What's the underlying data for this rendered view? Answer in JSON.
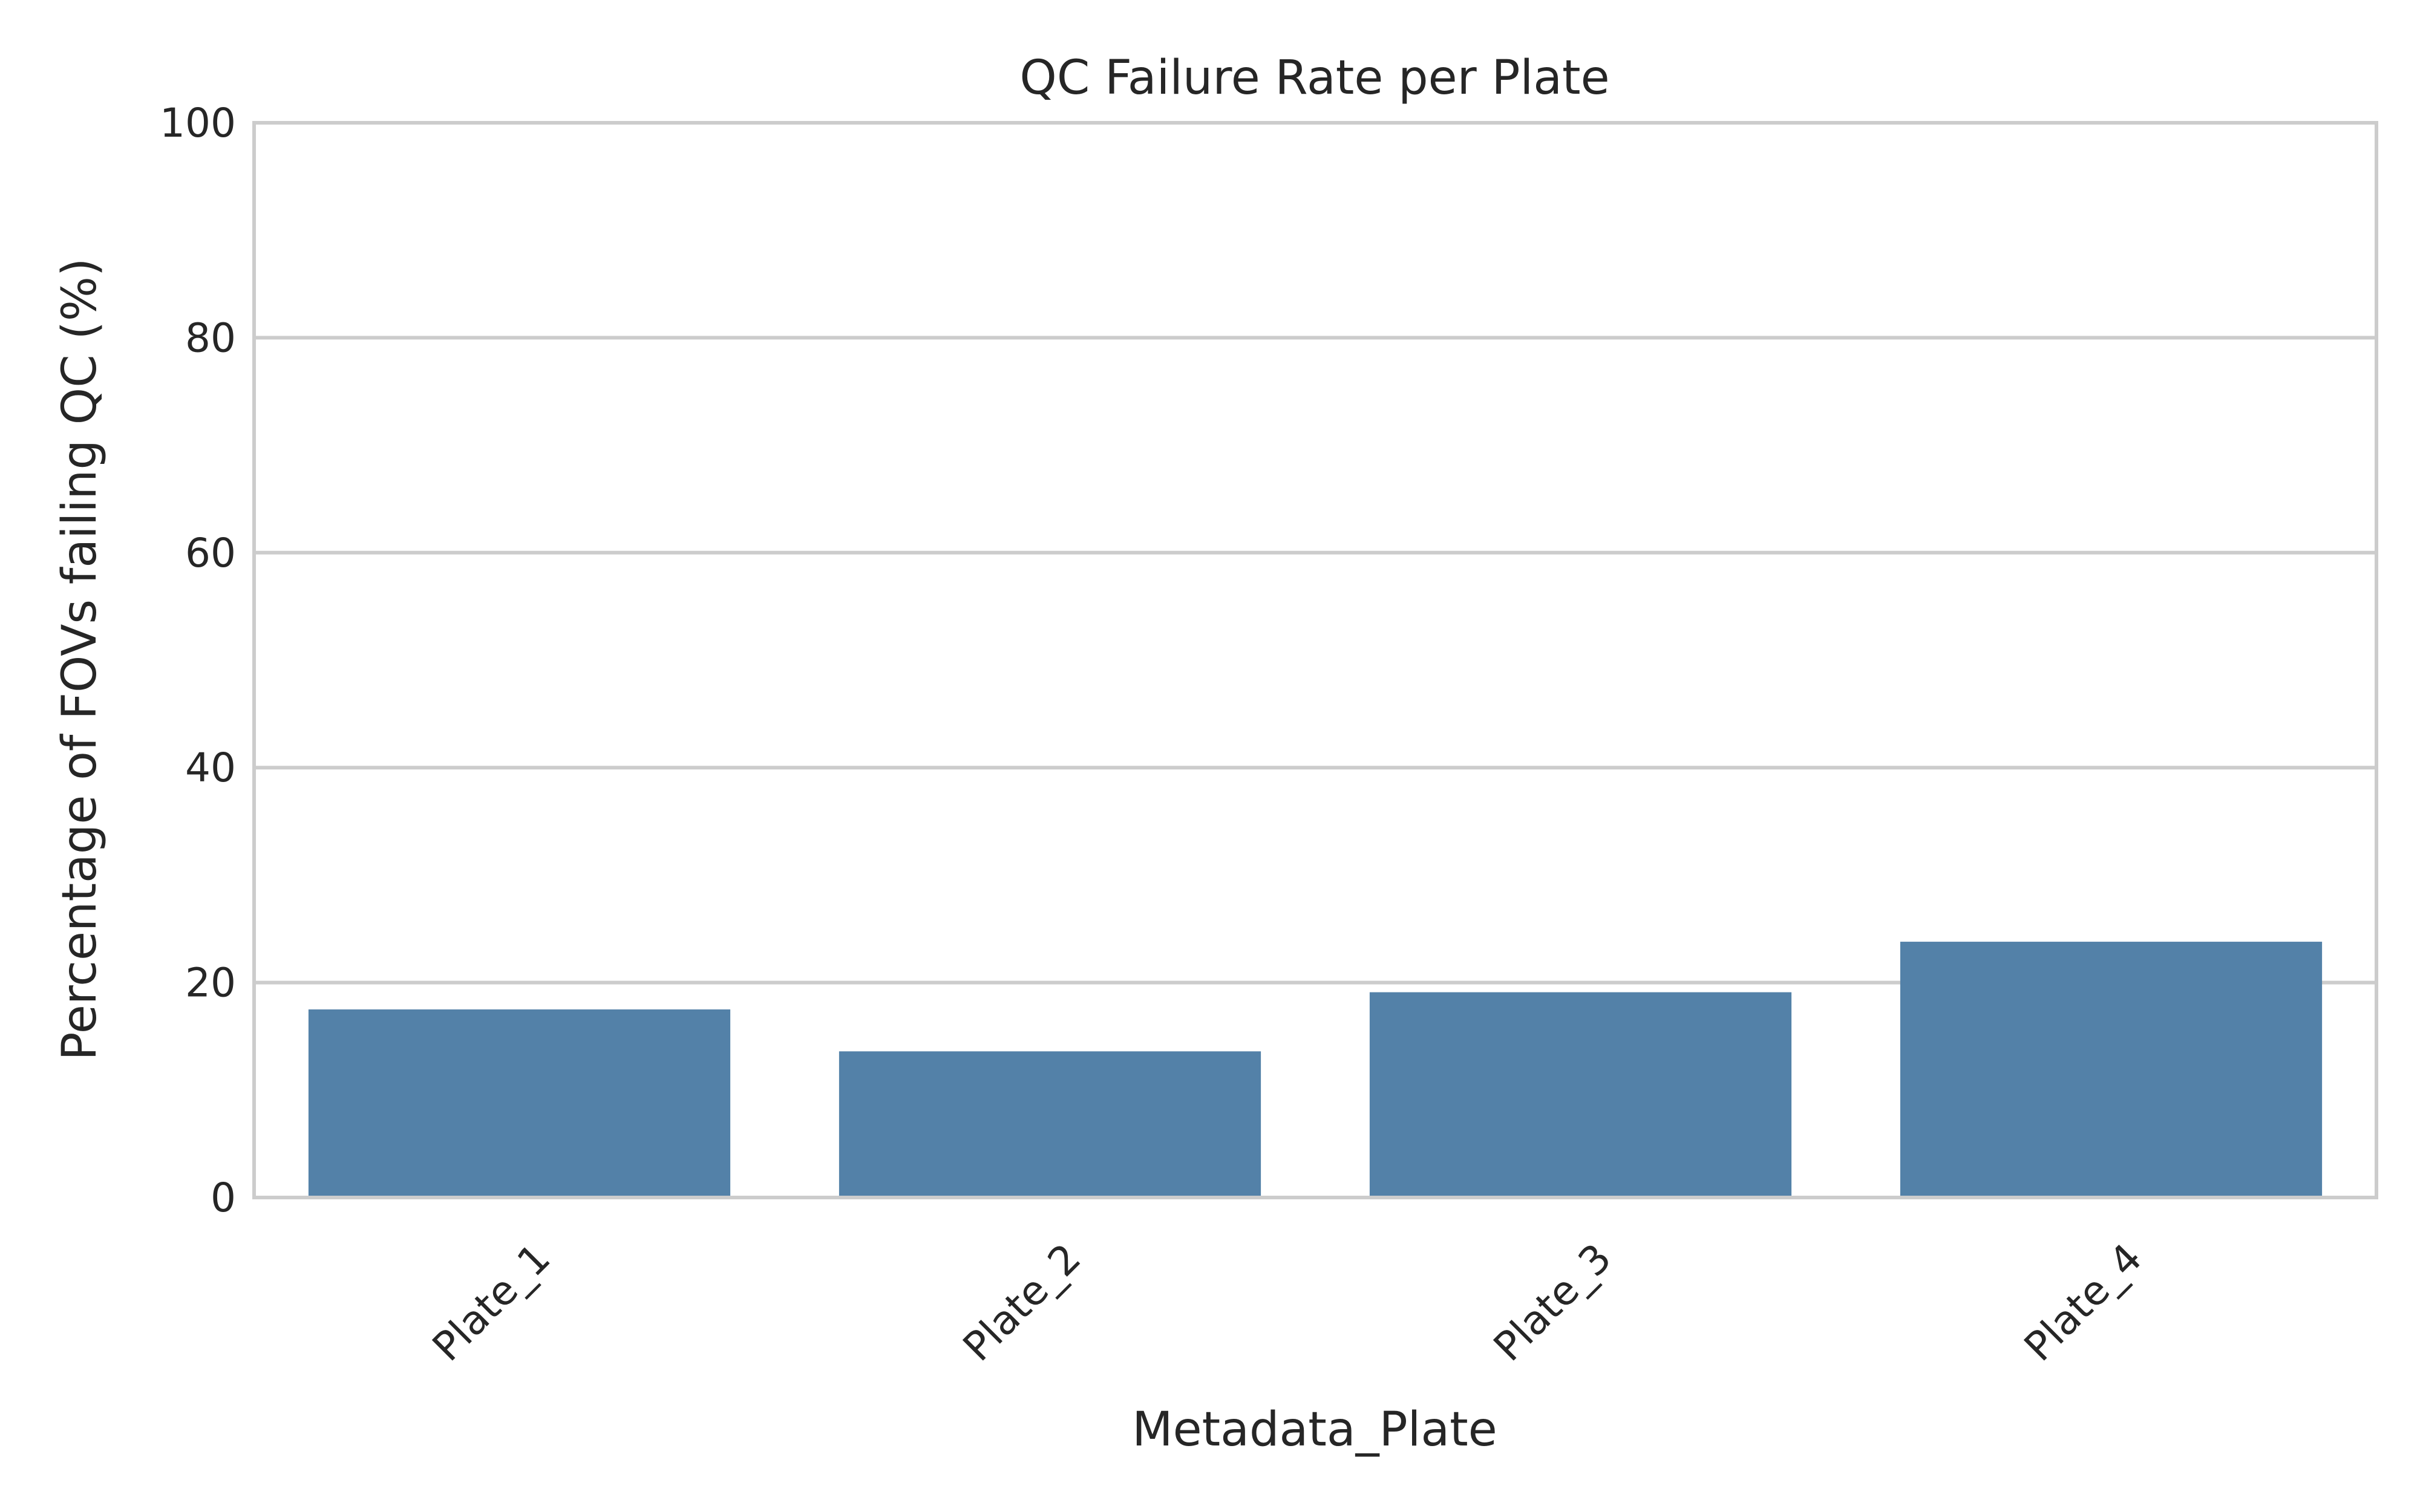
{
  "chart_data": {
    "type": "bar",
    "title": "QC Failure Rate per Plate",
    "xlabel": "Metadata_Plate",
    "ylabel": "Percentage of FOVs failing QC (%)",
    "categories": [
      "Plate_1",
      "Plate_2",
      "Plate_3",
      "Plate_4"
    ],
    "values": [
      17.5,
      13.6,
      19.1,
      23.8
    ],
    "ylim": [
      0,
      100
    ],
    "yticks": [
      0,
      20,
      40,
      60,
      80,
      100
    ],
    "grid": true,
    "bar_color": "#5381a8",
    "legend": null
  }
}
